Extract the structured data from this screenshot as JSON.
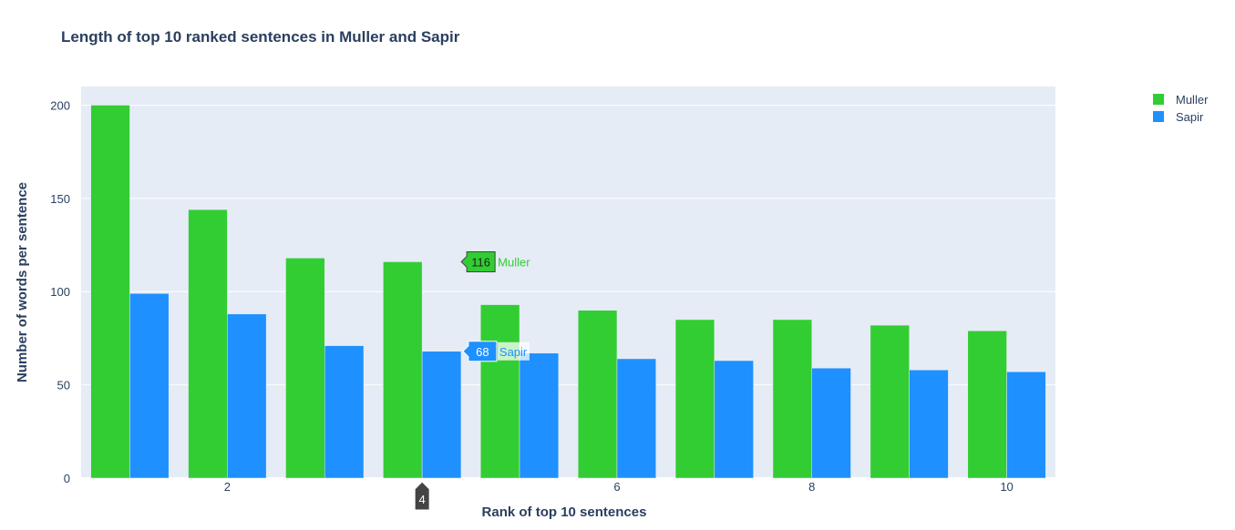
{
  "chart_data": {
    "type": "bar",
    "title": "Length of top 10 ranked sentences in Muller and Sapir",
    "xlabel": "Rank of top 10 sentences",
    "ylabel": "Number of words per sentence",
    "x": [
      1,
      2,
      3,
      4,
      5,
      6,
      7,
      8,
      9,
      10
    ],
    "x_ticks": [
      "2",
      "6",
      "8",
      "10"
    ],
    "y_ticks": [
      "0",
      "50",
      "100",
      "150",
      "200"
    ],
    "ylim": [
      0,
      210
    ],
    "xlim": [
      0.5,
      10.5
    ],
    "grid": true,
    "legend_position": "top-right",
    "series": [
      {
        "name": "Muller",
        "color": "#32cd32",
        "values": [
          200,
          144,
          118,
          116,
          93,
          90,
          85,
          85,
          82,
          79
        ]
      },
      {
        "name": "Sapir",
        "color": "#1e90ff",
        "values": [
          99,
          88,
          71,
          68,
          67,
          64,
          63,
          59,
          58,
          57
        ]
      }
    ],
    "hover": {
      "x_label": "4",
      "labels": [
        {
          "series": "Muller",
          "value": "116",
          "name": "Muller"
        },
        {
          "series": "Sapir",
          "value": "68",
          "name": "Sapir"
        }
      ]
    }
  }
}
